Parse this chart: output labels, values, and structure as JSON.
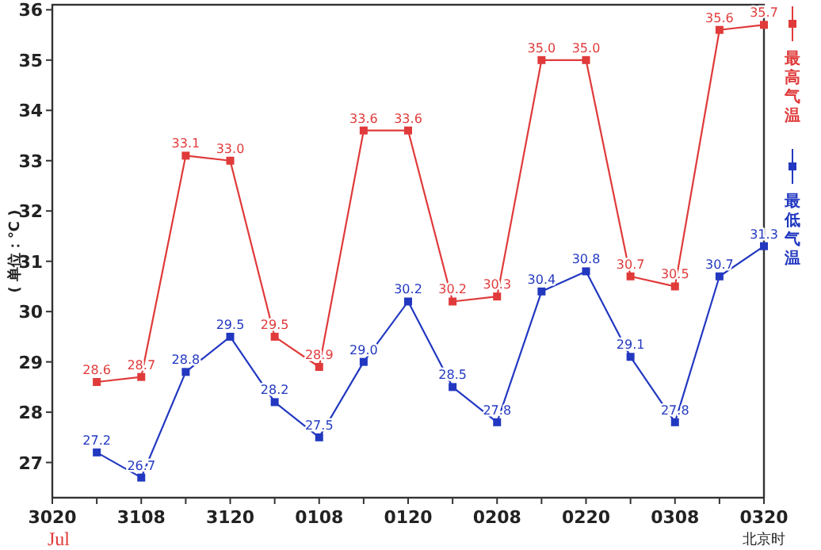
{
  "chart_data": {
    "type": "line",
    "xlabel": "北京时",
    "ylabel": "( 单位：℃ )",
    "categories": [
      "3020",
      null,
      "3108",
      null,
      "3120",
      null,
      "0108",
      null,
      "0120",
      null,
      "0208",
      null,
      "0220",
      null,
      "0308",
      null,
      "0320"
    ],
    "ylim": [
      26.3,
      36.1
    ],
    "yticks": [
      27,
      28,
      29,
      30,
      31,
      32,
      33,
      34,
      35,
      36
    ],
    "series": [
      {
        "name": "最高气温",
        "color": "#e03a3a",
        "values": [
          null,
          28.6,
          28.7,
          33.1,
          33.0,
          29.5,
          28.9,
          33.6,
          33.6,
          30.2,
          30.3,
          35.0,
          35.0,
          30.7,
          30.5,
          35.6,
          35.7
        ],
        "value_labels": [
          null,
          "28.6",
          "28.7",
          "33.1",
          "33.0",
          "29.5",
          "28.9",
          "33.6",
          "33.6",
          "30.2",
          "30.3",
          "35.0",
          "35.0",
          "30.7",
          "30.5",
          "35.6",
          "35.7"
        ]
      },
      {
        "name": "最低气温",
        "color": "#2238c0",
        "values": [
          null,
          27.2,
          26.7,
          28.8,
          29.5,
          28.2,
          27.5,
          29.0,
          30.2,
          28.5,
          27.8,
          30.4,
          30.8,
          29.1,
          27.8,
          30.7,
          31.3
        ],
        "value_labels": [
          null,
          "27.2",
          "26.7",
          "28.8",
          "29.5",
          "28.2",
          "27.5",
          "29.0",
          "30.2",
          "28.5",
          "27.8",
          "30.4",
          "30.8",
          "29.1",
          "27.8",
          "30.7",
          "31.3"
        ]
      }
    ],
    "annotations": [
      "Jul"
    ],
    "marker": "square",
    "legend": "right"
  }
}
